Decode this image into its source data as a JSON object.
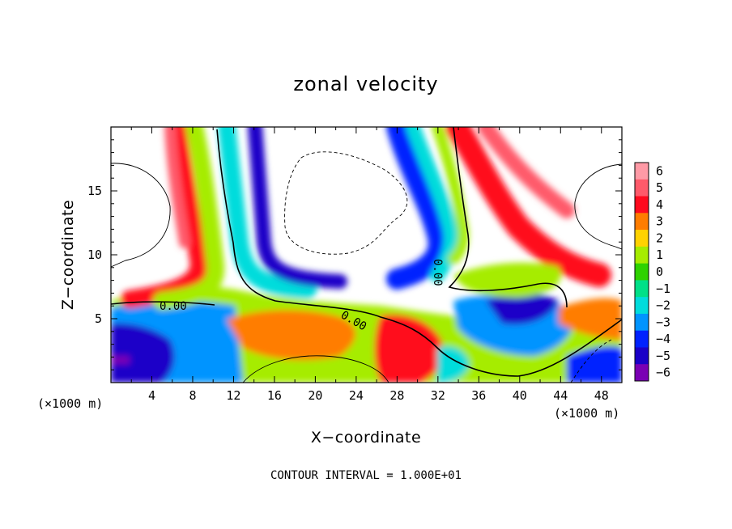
{
  "chart_data": {
    "type": "heatmap",
    "title": "zonal velocity",
    "xlabel": "X−coordinate",
    "ylabel": "Z−coordinate",
    "x_unit": "(×1000 m)",
    "x_unit_right": "(×1000 m)",
    "xlim": [
      0,
      50
    ],
    "ylim": [
      0,
      20
    ],
    "x_ticks": [
      4,
      8,
      12,
      16,
      20,
      24,
      28,
      32,
      36,
      40,
      44,
      48
    ],
    "y_ticks": [
      5,
      10,
      15
    ],
    "colorbar": {
      "levels": [
        6,
        5,
        4,
        3,
        2,
        1,
        0,
        -1,
        -2,
        -3,
        -4,
        -5,
        -6
      ],
      "labels": [
        "6",
        "5",
        "4",
        "3",
        "2",
        "1",
        "0",
        "−1",
        "−2",
        "−3",
        "−4",
        "−5",
        "−6"
      ],
      "colors": [
        "#ff9aa6",
        "#ff5a6a",
        "#ff0a1e",
        "#ff7d00",
        "#ffd200",
        "#a6ec00",
        "#2ed200",
        "#00e088",
        "#00dcdc",
        "#0094ff",
        "#0022ff",
        "#1a00c8",
        "#7a00b4"
      ]
    },
    "contour_labels": [
      "0.00",
      "0.00",
      "0.00"
    ],
    "note": "CONTOUR INTERVAL = 1.000E+01"
  }
}
